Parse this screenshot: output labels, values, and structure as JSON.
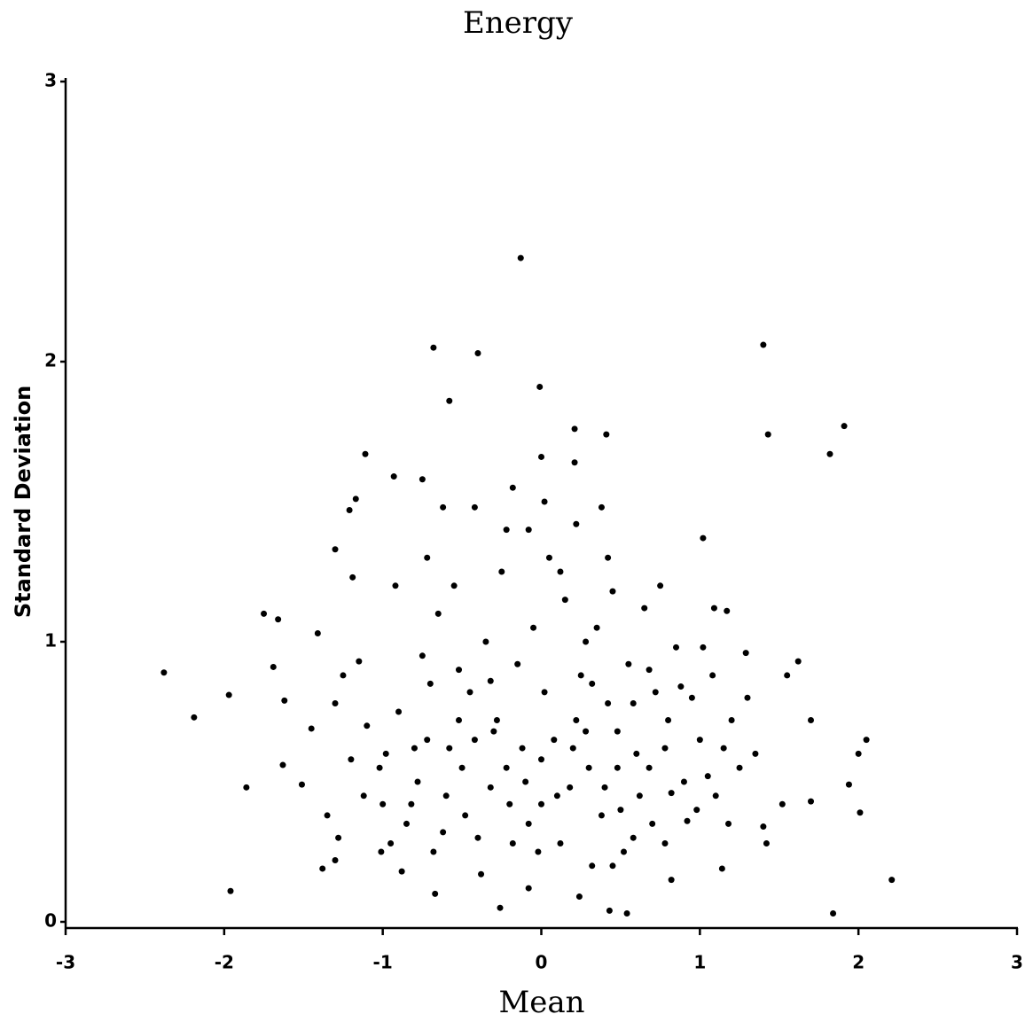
{
  "chart_data": {
    "type": "scatter",
    "title": "Energy",
    "xlabel": "Mean",
    "ylabel": "Standard Deviation",
    "color": "#000000",
    "xlim": [
      -3,
      3
    ],
    "ylim": [
      0,
      3
    ],
    "xticks": [
      -3,
      -2,
      -1,
      0,
      1,
      2,
      3
    ],
    "yticks": [
      0,
      1,
      2,
      3
    ],
    "x": [
      -0.13,
      -0.68,
      -0.4,
      1.4,
      -0.01,
      -0.58,
      0.21,
      0.41,
      1.43,
      1.91,
      1.82,
      -1.11,
      -0.93,
      -0.75,
      0.0,
      0.21,
      -2.38,
      -2.19,
      -1.97,
      -1.96,
      -1.86,
      -1.75,
      -1.66,
      2.21,
      1.84,
      2.01,
      2.05,
      2.0,
      1.94,
      1.02,
      0.54,
      0.43,
      -0.26,
      0.24,
      -0.67,
      -0.08,
      -1.3,
      -1.17,
      -1.21,
      -1.19,
      -1.41,
      -1.69,
      -1.62,
      -1.63,
      -1.51,
      -1.45,
      -1.38,
      -1.3,
      -1.01,
      1.14,
      0.82,
      1.55,
      1.62,
      1.7,
      1.52,
      1.7,
      1.4,
      1.42,
      1.29,
      1.02,
      1.09,
      1.17,
      -0.9,
      -0.8,
      -0.7,
      -0.6,
      -0.5,
      -0.4,
      -0.3,
      -0.2,
      -0.1,
      0.0,
      0.1,
      0.2,
      0.3,
      0.4,
      0.5,
      0.6,
      0.7,
      0.8,
      0.9,
      1.0,
      -1.0,
      -0.85,
      -0.75,
      -0.65,
      -0.55,
      -0.45,
      -0.35,
      -0.25,
      -0.15,
      -0.05,
      0.05,
      0.15,
      0.25,
      0.35,
      0.45,
      0.55,
      0.65,
      0.75,
      0.85,
      0.95,
      -1.1,
      -1.2,
      -0.95,
      -0.88,
      -0.78,
      -0.68,
      -0.58,
      -0.48,
      -0.38,
      -0.28,
      -0.18,
      -0.08,
      0.02,
      0.12,
      0.22,
      0.32,
      0.42,
      0.52,
      0.62,
      0.72,
      0.82,
      0.92,
      1.05,
      1.15,
      1.25,
      1.35,
      1.3,
      1.2,
      -0.92,
      -0.72,
      -0.62,
      -0.42,
      -0.22,
      -0.18,
      0.02,
      0.22,
      0.38,
      0.42,
      -0.08,
      0.12,
      -1.3,
      -1.25,
      -1.15,
      -1.35,
      -1.28,
      -1.12,
      -1.02,
      -0.98,
      -0.52,
      -0.32,
      0.28,
      0.48,
      0.58,
      0.68,
      0.78,
      0.88,
      0.98,
      1.08,
      1.1,
      1.18,
      -0.82,
      -0.62,
      -0.42,
      -0.22,
      0.0,
      0.18,
      0.38,
      0.58,
      0.78,
      -0.12,
      0.08,
      0.28,
      0.48,
      -0.32,
      -0.52,
      -0.72,
      0.68,
      0.32,
      -0.02,
      0.45
    ],
    "values": [
      2.37,
      2.05,
      2.03,
      2.06,
      1.91,
      1.86,
      1.76,
      1.74,
      1.74,
      1.77,
      1.67,
      1.67,
      1.59,
      1.58,
      1.66,
      1.64,
      0.89,
      0.73,
      0.81,
      0.11,
      0.48,
      1.1,
      1.08,
      0.15,
      0.03,
      0.39,
      0.65,
      0.6,
      0.49,
      1.37,
      0.03,
      0.04,
      0.05,
      0.09,
      0.1,
      0.12,
      1.33,
      1.51,
      1.47,
      1.23,
      1.03,
      0.91,
      0.79,
      0.56,
      0.49,
      0.69,
      0.19,
      0.22,
      0.25,
      0.19,
      0.15,
      0.88,
      0.93,
      0.72,
      0.42,
      0.43,
      0.34,
      0.28,
      0.96,
      0.98,
      1.12,
      1.11,
      0.75,
      0.62,
      0.85,
      0.45,
      0.55,
      0.3,
      0.68,
      0.42,
      0.5,
      0.58,
      0.45,
      0.62,
      0.55,
      0.48,
      0.4,
      0.6,
      0.35,
      0.72,
      0.5,
      0.65,
      0.42,
      0.35,
      0.95,
      1.1,
      1.2,
      0.82,
      1.0,
      1.25,
      0.92,
      1.05,
      1.3,
      1.15,
      0.88,
      1.05,
      1.18,
      0.92,
      1.12,
      1.2,
      0.98,
      0.8,
      0.7,
      0.58,
      0.28,
      0.18,
      0.5,
      0.25,
      0.62,
      0.38,
      0.17,
      0.72,
      0.28,
      0.35,
      0.82,
      0.28,
      0.72,
      0.2,
      0.78,
      0.25,
      0.45,
      0.82,
      0.46,
      0.36,
      0.52,
      0.62,
      0.55,
      0.6,
      0.8,
      0.72,
      1.2,
      1.3,
      1.48,
      1.48,
      1.4,
      1.55,
      1.5,
      1.42,
      1.48,
      1.3,
      1.4,
      1.25,
      0.78,
      0.88,
      0.93,
      0.38,
      0.3,
      0.45,
      0.55,
      0.6,
      0.9,
      0.86,
      1.0,
      0.68,
      0.78,
      0.55,
      0.62,
      0.84,
      0.4,
      0.88,
      0.45,
      0.35,
      0.42,
      0.32,
      0.65,
      0.55,
      0.42,
      0.48,
      0.38,
      0.3,
      0.28,
      0.62,
      0.65,
      0.68,
      0.55,
      0.48,
      0.72,
      0.65,
      0.9,
      0.85,
      0.25,
      0.2
    ]
  }
}
